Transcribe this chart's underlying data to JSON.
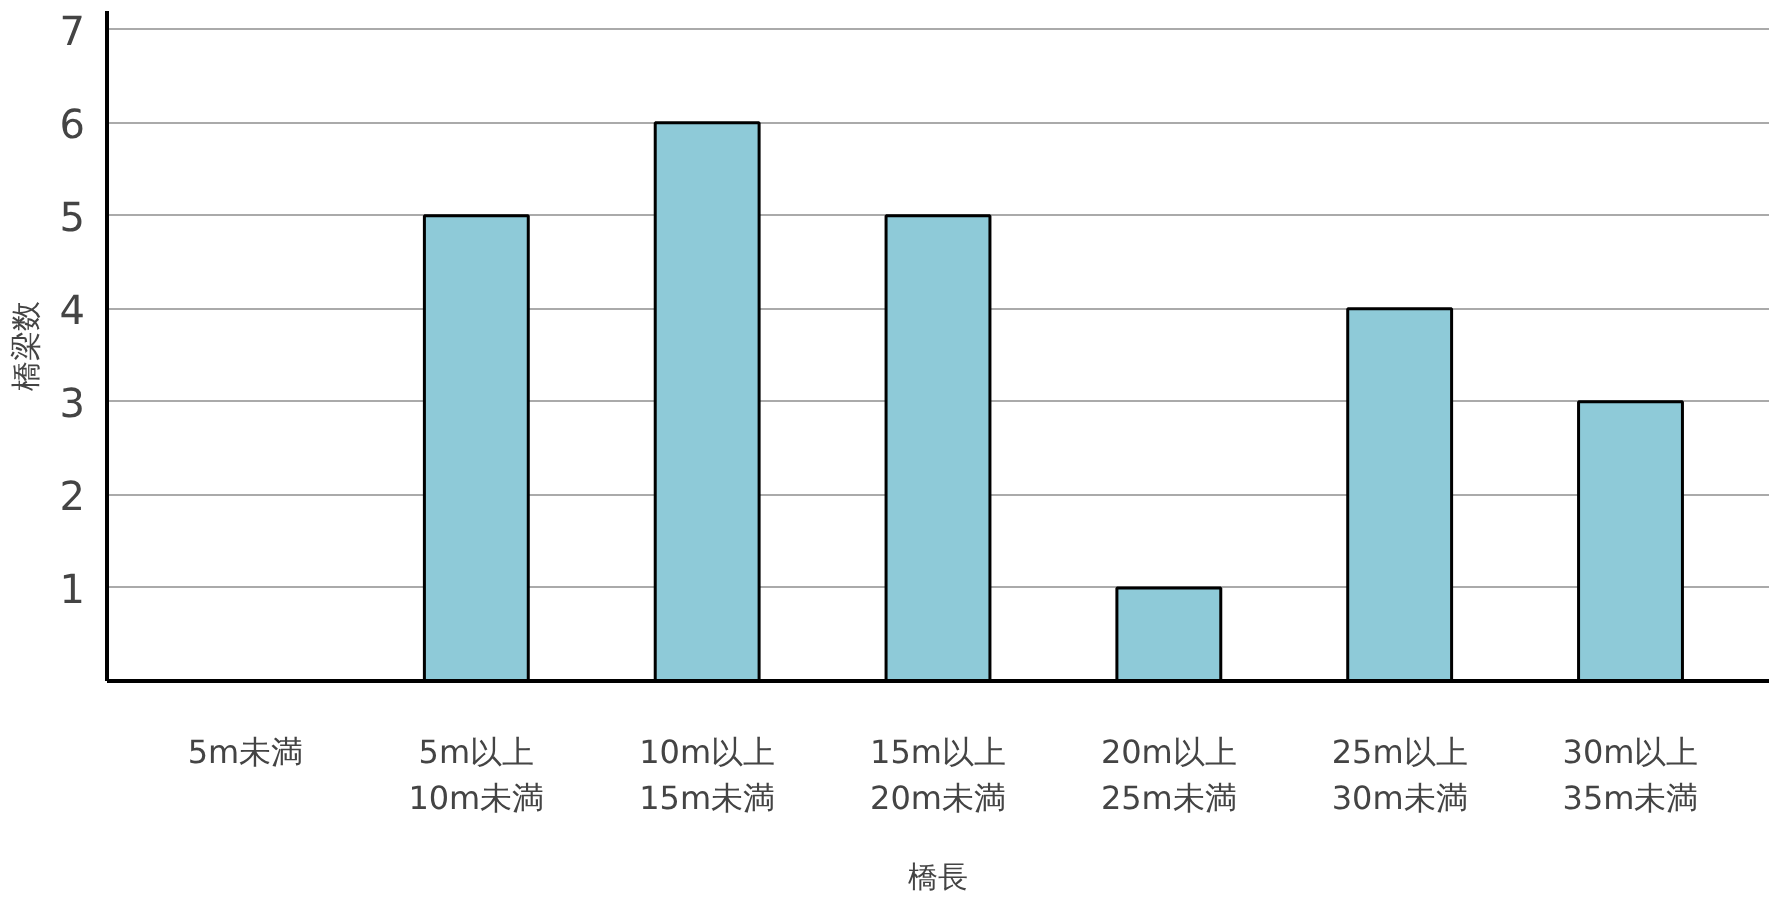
{
  "chart_data": {
    "type": "bar",
    "xlabel": "橋長",
    "ylabel": "橋梁数",
    "categories": [
      "5m未満",
      "5m以上\n10m未満",
      "10m以上\n15m未満",
      "15m以上\n20m未満",
      "20m以上\n25m未満",
      "25m以上\n30m未満",
      "30m以上\n35m未満"
    ],
    "values": [
      0,
      5,
      6,
      5,
      1,
      4,
      3
    ],
    "color": "#8ecad8",
    "ylim": [
      0,
      7.2
    ],
    "yticks": [
      1,
      2,
      3,
      4,
      5,
      6,
      7
    ],
    "grid": "y"
  }
}
